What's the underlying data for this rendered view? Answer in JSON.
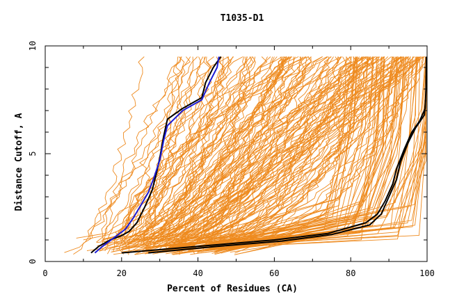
{
  "chart_data": {
    "type": "line",
    "title": "T1035-D1",
    "xlabel": "Percent of Residues (CA)",
    "ylabel": "Distance Cutoff, A",
    "xlim": [
      0,
      100
    ],
    "ylim": [
      0,
      10
    ],
    "x_ticks": [
      "0",
      "20",
      "40",
      "60",
      "80",
      "100"
    ],
    "y_ticks": [
      "0",
      "5",
      "10"
    ],
    "grid": false,
    "legend": "none",
    "colors": {
      "models": "#ee8a1e",
      "highlight_black": "#000000",
      "highlight_blue": "#1b1bd6"
    },
    "series": [
      {
        "color": "#000000",
        "points": [
          [
            12,
            0.4
          ],
          [
            14,
            0.7
          ],
          [
            17,
            1.0
          ],
          [
            20,
            1.2
          ],
          [
            22,
            1.4
          ],
          [
            24,
            1.8
          ],
          [
            26,
            2.5
          ],
          [
            28,
            3.3
          ],
          [
            29,
            4.0
          ],
          [
            30,
            4.8
          ],
          [
            31,
            5.8
          ],
          [
            32,
            6.6
          ],
          [
            36,
            7.1
          ],
          [
            41,
            7.6
          ],
          [
            42,
            8.3
          ],
          [
            44,
            9.0
          ],
          [
            46,
            9.5
          ]
        ]
      },
      {
        "color": "#1b1bd6",
        "points": [
          [
            13,
            0.4
          ],
          [
            15,
            0.7
          ],
          [
            18,
            1.1
          ],
          [
            21,
            1.5
          ],
          [
            23,
            2.0
          ],
          [
            25,
            2.6
          ],
          [
            27,
            3.2
          ],
          [
            28.5,
            3.9
          ],
          [
            30,
            4.7
          ],
          [
            31,
            5.6
          ],
          [
            32,
            6.3
          ],
          [
            36,
            7.0
          ],
          [
            41,
            7.5
          ],
          [
            43,
            8.3
          ],
          [
            45,
            9.0
          ],
          [
            45.5,
            9.5
          ]
        ]
      },
      {
        "color": "#000000",
        "points": [
          [
            20,
            0.4
          ],
          [
            40,
            0.7
          ],
          [
            60,
            1.0
          ],
          [
            74,
            1.3
          ],
          [
            84,
            1.8
          ],
          [
            87,
            2.2
          ],
          [
            89,
            2.8
          ],
          [
            91,
            3.6
          ],
          [
            92,
            4.3
          ],
          [
            94,
            5.2
          ],
          [
            96,
            6.0
          ],
          [
            98,
            6.5
          ],
          [
            99.5,
            7.1
          ],
          [
            99.7,
            8.0
          ],
          [
            99.8,
            9.5
          ]
        ]
      },
      {
        "color": "#000000",
        "points": [
          [
            27,
            0.4
          ],
          [
            45,
            0.7
          ],
          [
            62,
            0.95
          ],
          [
            75,
            1.25
          ],
          [
            85,
            1.7
          ],
          [
            88,
            2.2
          ],
          [
            90,
            3.0
          ],
          [
            92,
            3.8
          ],
          [
            93,
            4.6
          ],
          [
            95,
            5.5
          ],
          [
            97,
            6.2
          ],
          [
            99.3,
            6.8
          ],
          [
            99.6,
            7.5
          ]
        ]
      }
    ]
  }
}
